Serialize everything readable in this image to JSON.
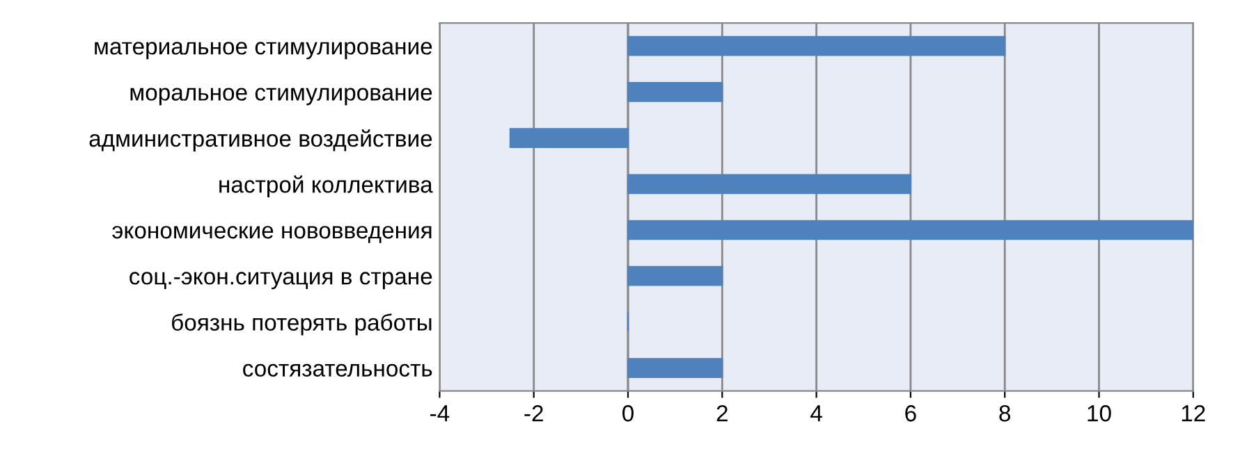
{
  "chart_data": {
    "type": "bar",
    "orientation": "horizontal",
    "categories": [
      "материальное стимулирование",
      "моральное стимулирование",
      "административное воздействие",
      "настрой коллектива",
      "экономические нововведения",
      "соц.-экон.ситуация в стране",
      "боязнь потерять работы",
      "состязательность"
    ],
    "values": [
      8,
      2,
      -2.5,
      6,
      12,
      2,
      0,
      2
    ],
    "color": "#4f81bd",
    "xlim": [
      -4,
      12
    ],
    "xticks": [
      -4,
      -2,
      0,
      2,
      4,
      6,
      8,
      10,
      12
    ],
    "grid": "x"
  }
}
